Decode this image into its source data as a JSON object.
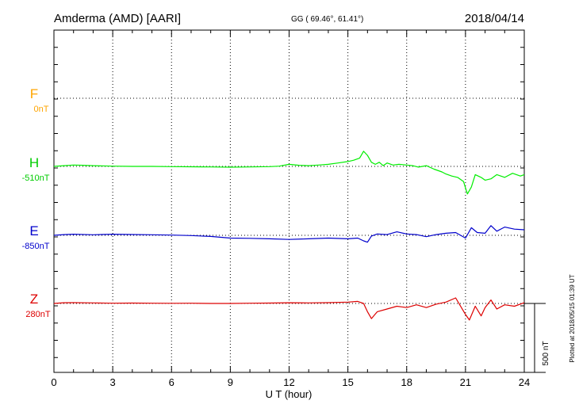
{
  "header": {
    "station": "Amderma (AMD)  [AARI]",
    "coords": "GG ( 69.46°,  61.41°)",
    "date": "2018/04/14"
  },
  "side_note": "Plotted at 2018/05/15 01:39 UT",
  "scale_bar": {
    "label": "500 nT",
    "value": 500
  },
  "colors": {
    "F": "#ffa500",
    "H": "#00ee00",
    "E": "#0000cc",
    "Z": "#dd0000"
  },
  "chart_data": {
    "type": "line",
    "title": "",
    "xlabel": "U T (hour)",
    "ylabel": "",
    "xlim": [
      0,
      24
    ],
    "xticks": [
      "0",
      "3",
      "6",
      "9",
      "12",
      "15",
      "18",
      "21",
      "24"
    ],
    "grid": true,
    "components": [
      {
        "name": "F",
        "baseline": "0nT",
        "values": []
      },
      {
        "name": "H",
        "baseline": "-510nT",
        "x": [
          0,
          0.5,
          1,
          1.5,
          2,
          3,
          4,
          5,
          6,
          7,
          8,
          9,
          10,
          11,
          11.5,
          12,
          12.5,
          13,
          13.5,
          14,
          14.5,
          15,
          15.3,
          15.6,
          15.8,
          16,
          16.2,
          16.4,
          16.6,
          16.8,
          17,
          17.3,
          17.6,
          18,
          18.3,
          18.6,
          19,
          19.4,
          19.8,
          20,
          20.3,
          20.6,
          20.9,
          21.1,
          21.3,
          21.5,
          21.8,
          22,
          22.3,
          22.6,
          23,
          23.4,
          23.8,
          24
        ],
        "values": [
          0,
          5,
          10,
          8,
          5,
          2,
          0,
          0,
          -2,
          -3,
          -4,
          -6,
          -4,
          -2,
          2,
          15,
          8,
          5,
          10,
          15,
          25,
          35,
          45,
          60,
          110,
          80,
          30,
          15,
          30,
          5,
          25,
          10,
          15,
          10,
          5,
          -5,
          5,
          -20,
          -40,
          -55,
          -70,
          -80,
          -110,
          -200,
          -150,
          -60,
          -80,
          -100,
          -90,
          -60,
          -80,
          -50,
          -70,
          -60
        ]
      },
      {
        "name": "E",
        "baseline": "-850nT",
        "x": [
          0,
          0.5,
          1,
          2,
          3,
          4,
          5,
          6,
          7,
          8,
          9,
          10,
          11,
          12,
          13,
          14,
          15,
          15.5,
          15.8,
          16,
          16.2,
          16.5,
          17,
          17.5,
          18,
          18.5,
          19,
          19.5,
          20,
          20.5,
          21,
          21.3,
          21.6,
          22,
          22.3,
          22.6,
          23,
          23.5,
          24
        ],
        "values": [
          0,
          5,
          8,
          4,
          8,
          6,
          4,
          2,
          -2,
          -8,
          -20,
          -22,
          -25,
          -30,
          -25,
          -20,
          -25,
          -20,
          -40,
          -50,
          -5,
          10,
          5,
          25,
          10,
          5,
          -10,
          5,
          15,
          20,
          -20,
          55,
          20,
          15,
          70,
          30,
          60,
          45,
          40
        ]
      },
      {
        "name": "Z",
        "baseline": "280nT",
        "x": [
          0,
          0.5,
          1,
          2,
          3,
          4,
          5,
          6,
          7,
          8,
          9,
          10,
          11,
          12,
          13,
          14,
          15,
          15.5,
          15.8,
          16,
          16.2,
          16.5,
          17,
          17.5,
          18,
          18.5,
          19,
          19.5,
          20,
          20.5,
          21,
          21.2,
          21.5,
          21.8,
          22,
          22.3,
          22.6,
          23,
          23.5,
          24
        ],
        "values": [
          0,
          5,
          6,
          4,
          2,
          3,
          2,
          1,
          2,
          0,
          0,
          2,
          3,
          5,
          4,
          6,
          10,
          15,
          0,
          -60,
          -110,
          -60,
          -40,
          -20,
          -30,
          -10,
          -30,
          -5,
          10,
          40,
          -80,
          -120,
          -20,
          -90,
          -30,
          25,
          -40,
          -10,
          -20,
          5
        ]
      }
    ]
  }
}
